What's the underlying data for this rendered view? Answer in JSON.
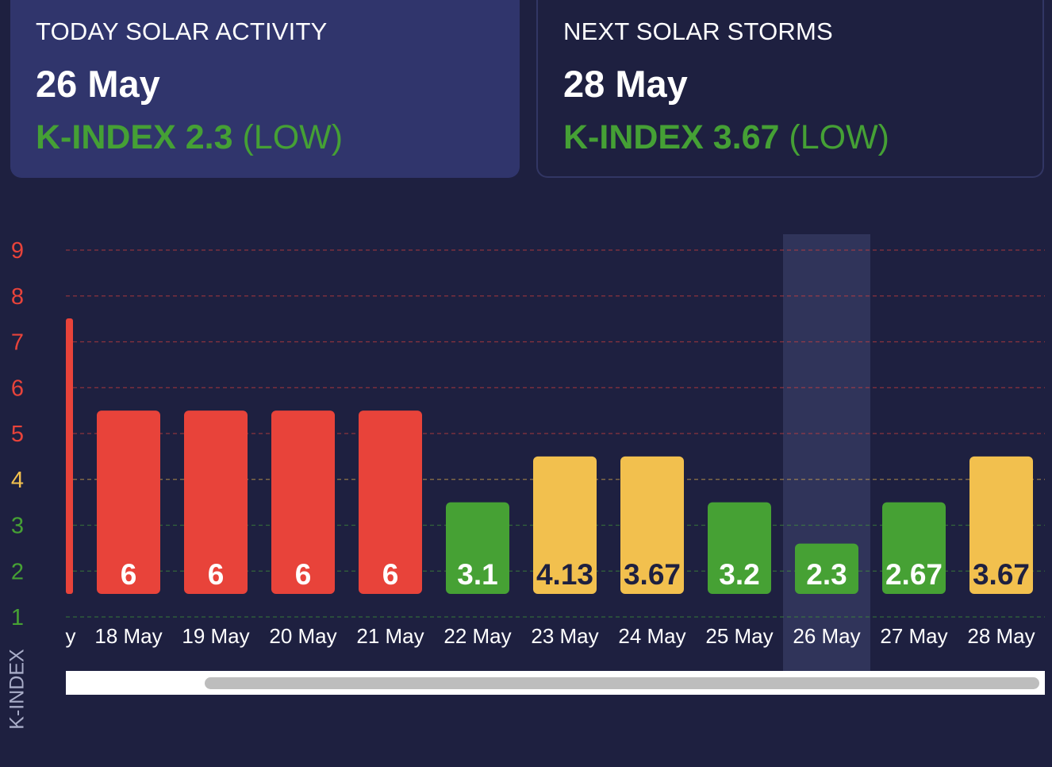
{
  "today": {
    "label": "TODAY SOLAR ACTIVITY",
    "date": "26 May",
    "k_prefix": "K-INDEX",
    "k_value": "2.3",
    "k_level": "(LOW)"
  },
  "next": {
    "label": "NEXT SOLAR STORMS",
    "date": "28 May",
    "k_prefix": "K-INDEX",
    "k_value": "3.67",
    "k_level": "(LOW)"
  },
  "colors": {
    "red": "#e8433a",
    "yellow": "#f2c04e",
    "green": "#46a134",
    "background": "#1e2040",
    "highlight": "#30345a"
  },
  "chart_data": {
    "type": "bar",
    "ylabel": "K-INDEX",
    "ylim": [
      1,
      9
    ],
    "yticks": [
      {
        "value": 9,
        "label": "9",
        "color": "#e8433a"
      },
      {
        "value": 8,
        "label": "8",
        "color": "#e8433a"
      },
      {
        "value": 7,
        "label": "7",
        "color": "#e8433a"
      },
      {
        "value": 6,
        "label": "6",
        "color": "#e8433a"
      },
      {
        "value": 5,
        "label": "5",
        "color": "#e8433a"
      },
      {
        "value": 4,
        "label": "4",
        "color": "#f2c04e"
      },
      {
        "value": 3,
        "label": "3",
        "color": "#46a134"
      },
      {
        "value": 2,
        "label": "2",
        "color": "#46a134"
      },
      {
        "value": 1,
        "label": "1",
        "color": "#46a134"
      }
    ],
    "grid": true,
    "partial_category": {
      "label": "y",
      "value": 6.5,
      "color": "#e8433a"
    },
    "categories": [
      "18 May",
      "19 May",
      "20 May",
      "21 May",
      "22 May",
      "23 May",
      "24 May",
      "25 May",
      "26 May",
      "27 May",
      "28 May"
    ],
    "values": [
      6,
      6,
      6,
      6,
      3.1,
      4.13,
      3.67,
      3.2,
      2.3,
      2.67,
      3.67
    ],
    "value_labels": [
      "6",
      "6",
      "6",
      "6",
      "3.1",
      "4.13",
      "3.67",
      "3.2",
      "2.3",
      "2.67",
      "3.67"
    ],
    "bar_levels": [
      5.5,
      5.5,
      5.5,
      5.5,
      3.5,
      4.5,
      4.5,
      3.5,
      2.6,
      3.5,
      4.5
    ],
    "bar_colors": [
      "red",
      "red",
      "red",
      "red",
      "green",
      "yellow",
      "yellow",
      "green",
      "green",
      "green",
      "yellow"
    ],
    "highlighted_category": "26 May"
  }
}
